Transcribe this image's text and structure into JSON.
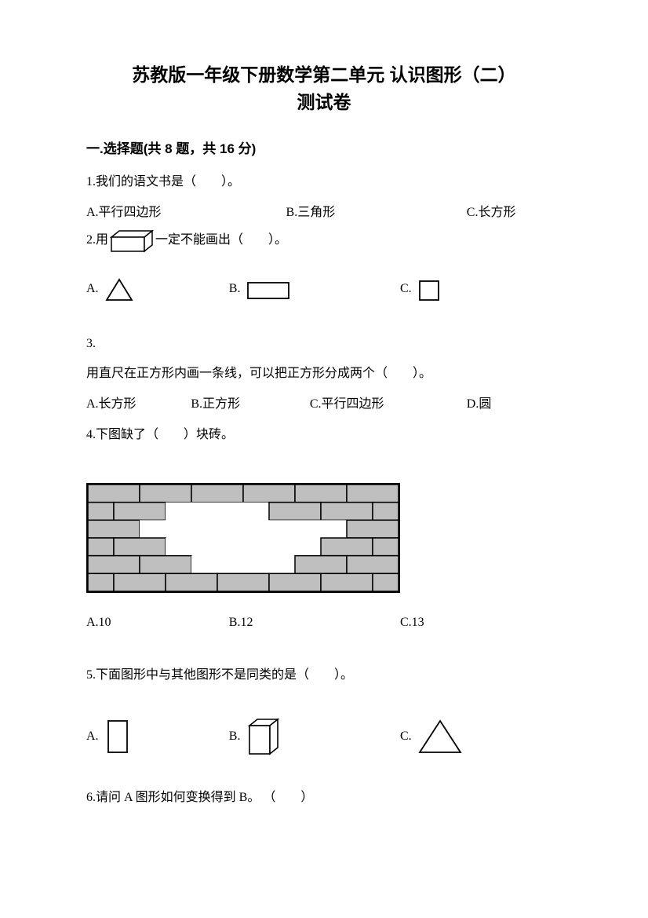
{
  "title_line1": "苏教版一年级下册数学第二单元 认识图形（二）",
  "title_line2": "测试卷",
  "section1": "一.选择题(共 8 题，共 16 分)",
  "q1": {
    "text": "1.我们的语文书是（　　）。",
    "optA": "A.平行四边形",
    "optB": "B.三角形",
    "optC": "C.长方形"
  },
  "q2": {
    "prefix": "2.用",
    "suffix": "一定不能画出（　　）。",
    "optA": "A.",
    "optB": "B.",
    "optC": "C."
  },
  "q3": {
    "num": "3.",
    "text": "用直尺在正方形内画一条线，可以把正方形分成两个（　　）。",
    "optA": "A.长方形",
    "optB": "B.正方形",
    "optC": "C.平行四边形",
    "optD": "D.圆"
  },
  "q4": {
    "text": "4.下图缺了（　　）块砖。",
    "optA": "A.10",
    "optB": "B.12",
    "optC": "C.13"
  },
  "q5": {
    "text": "5.下面图形中与其他图形不是同类的是（　　）。",
    "optA": "A.",
    "optB": "B.",
    "optC": "C."
  },
  "q6": {
    "text": "6.请问 A 图形如何变换得到 B。 （　　）"
  },
  "colors": {
    "text": "#000000",
    "bg": "#ffffff",
    "brick_fill": "#bfbfbf",
    "brick_stroke": "#000000"
  },
  "brick_wall": {
    "rows": 6,
    "bricks_per_row": 6,
    "half_offset_rows": [
      1,
      3,
      5
    ],
    "missing": [
      [
        1,
        2
      ],
      [
        1,
        3
      ],
      [
        2,
        1
      ],
      [
        2,
        2
      ],
      [
        2,
        3
      ],
      [
        2,
        4
      ],
      [
        3,
        2
      ],
      [
        3,
        3
      ],
      [
        3,
        4
      ],
      [
        4,
        2
      ],
      [
        4,
        3
      ]
    ],
    "partial": []
  },
  "fontsize_body": 16,
  "fontsize_title": 23
}
